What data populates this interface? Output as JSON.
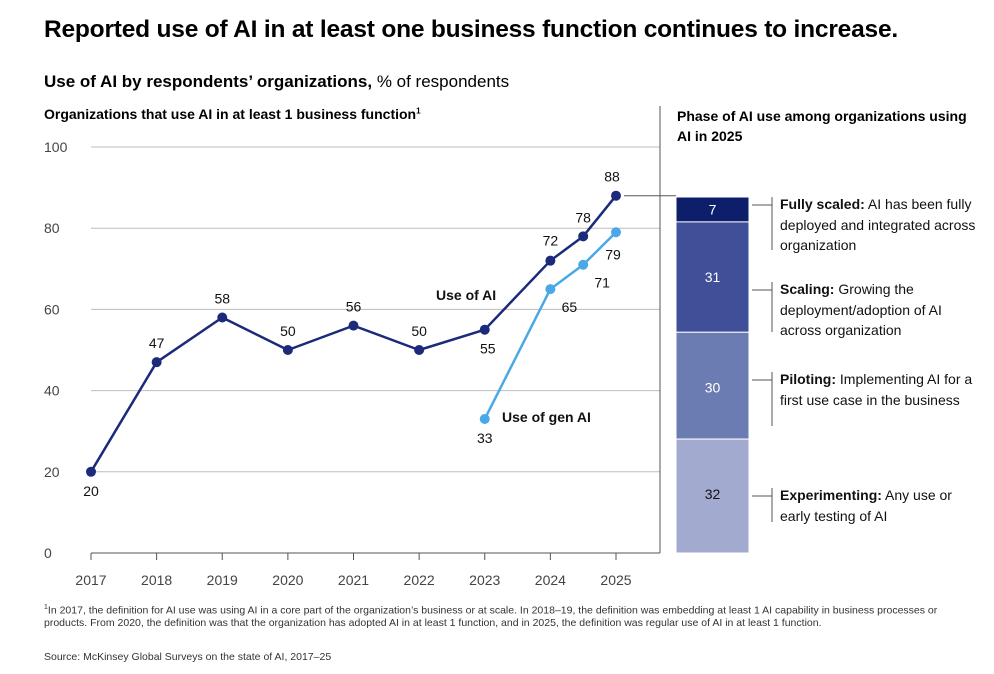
{
  "headline": "Reported use of AI in at least one business function continues to increase.",
  "subhead": {
    "bold": "Use of AI by respondents’ organizations,",
    "rest": " % of respondents"
  },
  "left_title": "Organizations that use AI in at least 1 business function",
  "left_title_sup": "1",
  "right_title": "Phase of AI use among organizations using AI in 2025",
  "footnote_sup": "1",
  "footnote": "In 2017, the definition for AI use was using AI in a core part of the organization’s business or at scale. In 2018–19, the definition was embedding at least 1 AI capability in business processes or products. From 2020, the definition was that the organization has adopted AI in at least 1 function, and in 2025, the definition was regular use of AI in at least 1 function.",
  "source": "Source: McKinsey Global Surveys on the state of AI, 2017–25",
  "colors": {
    "use_of_ai": "#1b2a7a",
    "use_of_gen_ai": "#4aa8e8",
    "fully_scaled": "#0d1f6b",
    "scaling": "#3f4f98",
    "piloting": "#6b7cb2",
    "experimenting": "#a2abcf"
  },
  "chart_data": [
    {
      "type": "line",
      "title": "Organizations that use AI in at least 1 business function",
      "ylim": [
        0,
        100
      ],
      "yticks": [
        0,
        20,
        40,
        60,
        80,
        100
      ],
      "x_ticks": [
        "2017",
        "2018",
        "2019",
        "2020",
        "2021",
        "2022",
        "2023",
        "2024",
        "2025"
      ],
      "grid": true,
      "series": [
        {
          "name": "Use of AI",
          "points": [
            {
              "x": 2017,
              "y": 20,
              "label": "20"
            },
            {
              "x": 2018,
              "y": 47,
              "label": "47"
            },
            {
              "x": 2019,
              "y": 58,
              "label": "58"
            },
            {
              "x": 2020,
              "y": 50,
              "label": "50"
            },
            {
              "x": 2021,
              "y": 56,
              "label": "56"
            },
            {
              "x": 2022,
              "y": 50,
              "label": "50"
            },
            {
              "x": 2023,
              "y": 55,
              "label": "55"
            },
            {
              "x": 2024,
              "y": 72,
              "label": "72"
            },
            {
              "x": 2024.5,
              "y": 78,
              "label": "78"
            },
            {
              "x": 2025,
              "y": 88,
              "label": "88"
            }
          ]
        },
        {
          "name": "Use of gen AI",
          "points": [
            {
              "x": 2023,
              "y": 33,
              "label": "33"
            },
            {
              "x": 2024,
              "y": 65,
              "label": "65"
            },
            {
              "x": 2024.5,
              "y": 71,
              "label": "71"
            },
            {
              "x": 2025,
              "y": 79,
              "label": "79"
            }
          ]
        }
      ]
    },
    {
      "type": "bar",
      "stacked": true,
      "title": "Phase of AI use among organizations using AI in 2025",
      "segments": [
        {
          "value": 7,
          "label": "7",
          "phase": "Fully scaled:",
          "desc": " AI has been fully deployed and integrated across organization"
        },
        {
          "value": 31,
          "label": "31",
          "phase": "Scaling:",
          "desc": " Growing the deployment/adoption of AI across organization"
        },
        {
          "value": 30,
          "label": "30",
          "phase": "Piloting:",
          "desc": " Implementing AI for a first use case in the business"
        },
        {
          "value": 32,
          "label": "32",
          "phase": "Experimenting:",
          "desc": " Any use or early testing of AI"
        }
      ]
    }
  ]
}
